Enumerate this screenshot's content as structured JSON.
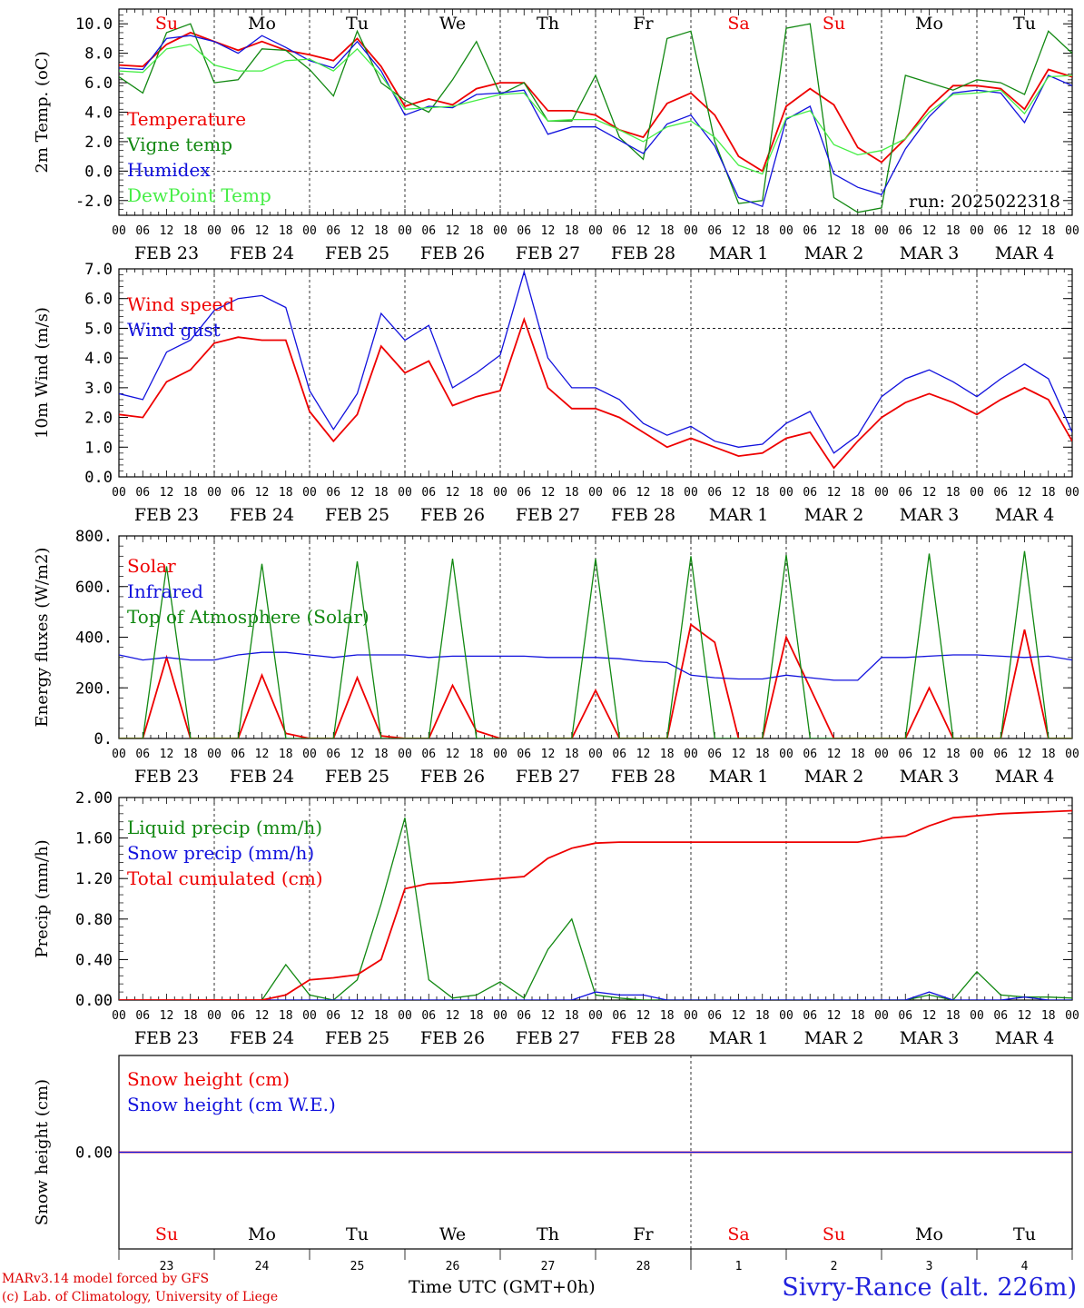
{
  "footer": {
    "credit_line1": "MARv3.14 model forced by GFS",
    "credit_line2": "(c) Lab. of Climatology, University of Liege",
    "x_axis_title": "Time UTC (GMT+0h)",
    "station": "Sivry-Rance (alt. 226m)",
    "run_label": "run: 2025022318"
  },
  "time_axis": {
    "hour_ticks": [
      "00",
      "06",
      "12",
      "18"
    ],
    "day_labels": [
      "FEB 23",
      "FEB 24",
      "FEB 25",
      "FEB 26",
      "FEB 27",
      "FEB 28",
      "MAR  1",
      "MAR  2",
      "MAR  3",
      "MAR  4"
    ],
    "weekday_labels": [
      "Su",
      "Mo",
      "Tu",
      "We",
      "Th",
      "Fr",
      "Sa",
      "Su",
      "Mo",
      "Tu"
    ],
    "weekend_flags": [
      true,
      false,
      false,
      false,
      false,
      false,
      true,
      true,
      false,
      false
    ],
    "day_numbers": [
      "23",
      "24",
      "25",
      "26",
      "27",
      "28",
      "1",
      "2",
      "3",
      "4"
    ],
    "bottom_month_label": "FEB",
    "bottom_month_label2": "MAR"
  },
  "colors": {
    "red": "#ee0000",
    "green": "#118811",
    "blue": "#1111dd",
    "lightgreen": "#44ee44",
    "weekend": "#ee0000"
  },
  "chart_data": [
    {
      "type": "line",
      "ylabel": "2m Temp. (oC)",
      "ylim": [
        -3.0,
        11.0
      ],
      "yticks": [
        "10.0",
        "8.0",
        "6.0",
        "4.0",
        "2.0",
        "0.0",
        "-2.0"
      ],
      "ytick_values": [
        10,
        8,
        6,
        4,
        2,
        0,
        -2
      ],
      "dashed_y": 0,
      "x_hours": [
        0,
        6,
        12,
        18,
        24,
        30,
        36,
        42,
        48,
        54,
        60,
        66,
        72,
        78,
        84,
        90,
        96,
        102,
        108,
        114,
        120,
        126,
        132,
        138,
        144,
        150,
        156,
        162,
        168,
        174,
        180,
        186,
        192,
        198,
        204,
        210,
        216,
        222,
        228,
        234,
        240
      ],
      "series": [
        {
          "name": "Temperature",
          "color": "red",
          "values": [
            7.2,
            7.1,
            8.6,
            9.4,
            8.8,
            8.2,
            8.8,
            8.2,
            7.9,
            7.5,
            9.0,
            7.1,
            4.4,
            4.9,
            4.5,
            5.6,
            6.0,
            6.0,
            4.1,
            4.1,
            3.8,
            2.8,
            2.3,
            4.6,
            5.3,
            3.8,
            1.0,
            0.0,
            4.4,
            5.6,
            4.5,
            1.6,
            0.6,
            2.2,
            4.3,
            5.8,
            5.8,
            5.6,
            4.2,
            6.9,
            6.4
          ]
        },
        {
          "name": "Vigne temp",
          "color": "green",
          "values": [
            6.4,
            5.3,
            9.4,
            10.0,
            6.0,
            6.2,
            8.3,
            8.2,
            6.9,
            5.1,
            9.5,
            6.0,
            4.8,
            4.0,
            6.2,
            8.8,
            5.2,
            6.0,
            3.4,
            3.4,
            6.5,
            2.3,
            0.8,
            9.0,
            9.5,
            2.0,
            -2.2,
            -2.0,
            9.7,
            10.0,
            -1.8,
            -2.8,
            -2.5,
            6.5,
            6.0,
            5.5,
            6.2,
            6.0,
            5.2,
            9.5,
            8.0
          ]
        },
        {
          "name": "Humidex",
          "color": "blue",
          "values": [
            7.0,
            6.9,
            9.0,
            9.2,
            8.8,
            8.0,
            9.2,
            8.4,
            7.5,
            7.0,
            8.8,
            6.8,
            3.8,
            4.4,
            4.3,
            5.2,
            5.3,
            5.5,
            2.5,
            3.0,
            3.0,
            2.1,
            1.2,
            3.2,
            3.8,
            1.7,
            -1.8,
            -2.4,
            3.5,
            4.4,
            -0.2,
            -1.1,
            -1.6,
            1.5,
            3.7,
            5.3,
            5.5,
            5.3,
            3.3,
            6.5,
            5.8
          ]
        },
        {
          "name": "DewPoint Temp",
          "color": "lightgreen",
          "values": [
            6.8,
            6.7,
            8.3,
            8.6,
            7.2,
            6.8,
            6.8,
            7.5,
            7.6,
            6.8,
            8.3,
            6.5,
            4.2,
            4.3,
            4.4,
            4.8,
            5.2,
            5.3,
            3.4,
            3.5,
            3.5,
            2.8,
            2.0,
            3.0,
            3.4,
            2.3,
            0.4,
            -0.2,
            3.6,
            4.1,
            1.8,
            1.1,
            1.4,
            2.2,
            4.0,
            5.2,
            5.3,
            5.5,
            3.9,
            6.4,
            6.5
          ]
        }
      ]
    },
    {
      "type": "line",
      "ylabel": "10m Wind (m/s)",
      "ylim": [
        0.0,
        7.0
      ],
      "yticks": [
        "7.0",
        "6.0",
        "5.0",
        "4.0",
        "3.0",
        "2.0",
        "1.0",
        "0.0"
      ],
      "ytick_values": [
        7,
        6,
        5,
        4,
        3,
        2,
        1,
        0
      ],
      "dashed_y": 5,
      "x_hours": [
        0,
        6,
        12,
        18,
        24,
        30,
        36,
        42,
        48,
        54,
        60,
        66,
        72,
        78,
        84,
        90,
        96,
        102,
        108,
        114,
        120,
        126,
        132,
        138,
        144,
        150,
        156,
        162,
        168,
        174,
        180,
        186,
        192,
        198,
        204,
        210,
        216,
        222,
        228,
        234,
        240
      ],
      "series": [
        {
          "name": "Wind speed",
          "color": "red",
          "values": [
            2.1,
            2.0,
            3.2,
            3.6,
            4.5,
            4.7,
            4.6,
            4.6,
            2.2,
            1.2,
            2.1,
            4.4,
            3.5,
            3.9,
            2.4,
            2.7,
            2.9,
            5.3,
            3.0,
            2.3,
            2.3,
            2.0,
            1.5,
            1.0,
            1.3,
            1.0,
            0.7,
            0.8,
            1.3,
            1.5,
            0.3,
            1.2,
            2.0,
            2.5,
            2.8,
            2.5,
            2.1,
            2.6,
            3.0,
            2.6,
            1.2
          ]
        },
        {
          "name": "Wind gust",
          "color": "blue",
          "values": [
            2.8,
            2.6,
            4.2,
            4.6,
            5.6,
            6.0,
            6.1,
            5.7,
            2.9,
            1.6,
            2.8,
            5.5,
            4.6,
            5.1,
            3.0,
            3.5,
            4.1,
            6.9,
            4.0,
            3.0,
            3.0,
            2.6,
            1.8,
            1.4,
            1.7,
            1.2,
            1.0,
            1.1,
            1.8,
            2.2,
            0.8,
            1.4,
            2.7,
            3.3,
            3.6,
            3.2,
            2.7,
            3.3,
            3.8,
            3.3,
            1.5
          ]
        }
      ]
    },
    {
      "type": "line",
      "ylabel": "Energy fluxes (W/m2)",
      "ylim": [
        0,
        800
      ],
      "yticks": [
        "800.",
        "600.",
        "400.",
        "200.",
        "0."
      ],
      "ytick_values": [
        800,
        600,
        400,
        200,
        0
      ],
      "dashed_y": null,
      "x_hours": [
        0,
        6,
        12,
        18,
        24,
        30,
        36,
        42,
        48,
        54,
        60,
        66,
        72,
        78,
        84,
        90,
        96,
        102,
        108,
        114,
        120,
        126,
        132,
        138,
        144,
        150,
        156,
        162,
        168,
        174,
        180,
        186,
        192,
        198,
        204,
        210,
        216,
        222,
        228,
        234,
        240
      ],
      "series": [
        {
          "name": "Solar",
          "color": "red",
          "values": [
            0,
            0,
            320,
            0,
            0,
            0,
            250,
            20,
            0,
            0,
            240,
            10,
            0,
            0,
            210,
            30,
            0,
            0,
            0,
            0,
            190,
            0,
            0,
            0,
            450,
            380,
            0,
            0,
            400,
            200,
            0,
            0,
            0,
            0,
            200,
            0,
            0,
            0,
            430,
            0,
            0
          ]
        },
        {
          "name": "Infrared",
          "color": "blue",
          "values": [
            330,
            310,
            320,
            310,
            310,
            330,
            340,
            340,
            330,
            320,
            330,
            330,
            330,
            320,
            325,
            325,
            325,
            325,
            320,
            320,
            320,
            315,
            305,
            300,
            250,
            240,
            235,
            235,
            250,
            240,
            230,
            230,
            320,
            320,
            325,
            330,
            330,
            325,
            320,
            325,
            310
          ]
        },
        {
          "name": "Top of Atmosphere (Solar)",
          "color": "green",
          "values": [
            0,
            0,
            680,
            0,
            0,
            0,
            690,
            0,
            0,
            0,
            700,
            0,
            0,
            0,
            710,
            0,
            0,
            0,
            0,
            0,
            710,
            0,
            0,
            0,
            720,
            0,
            0,
            0,
            725,
            0,
            0,
            0,
            0,
            0,
            730,
            0,
            0,
            0,
            740,
            0,
            0
          ]
        }
      ]
    },
    {
      "type": "line",
      "ylabel": "Precip (mm/h)",
      "ylim": [
        0.0,
        2.0
      ],
      "yticks": [
        "2.00",
        "1.60",
        "1.20",
        "0.80",
        "0.40",
        "0.00"
      ],
      "ytick_values": [
        2.0,
        1.6,
        1.2,
        0.8,
        0.4,
        0.0
      ],
      "dashed_y": null,
      "x_hours": [
        0,
        6,
        12,
        18,
        24,
        30,
        36,
        42,
        48,
        54,
        60,
        66,
        72,
        78,
        84,
        90,
        96,
        102,
        108,
        114,
        120,
        126,
        132,
        138,
        144,
        150,
        156,
        162,
        168,
        174,
        180,
        186,
        192,
        198,
        204,
        210,
        216,
        222,
        228,
        234,
        240
      ],
      "series": [
        {
          "name": "Liquid precip (mm/h)",
          "color": "green",
          "values": [
            0,
            0,
            0,
            0,
            0,
            0,
            0,
            0.35,
            0.05,
            0,
            0.2,
            0.95,
            1.8,
            0.2,
            0.02,
            0.05,
            0.18,
            0.02,
            0.5,
            0.8,
            0.05,
            0.02,
            0,
            0,
            0,
            0,
            0,
            0,
            0,
            0,
            0,
            0,
            0,
            0,
            0.05,
            0,
            0.28,
            0.05,
            0.03,
            0.03,
            0.02
          ]
        },
        {
          "name": "Snow precip (mm/h)",
          "color": "blue",
          "values": [
            0,
            0,
            0,
            0,
            0,
            0,
            0,
            0,
            0,
            0,
            0,
            0,
            0,
            0,
            0,
            0,
            0,
            0,
            0,
            0,
            0.08,
            0.05,
            0.05,
            0,
            0,
            0,
            0,
            0,
            0,
            0,
            0,
            0,
            0,
            0,
            0.08,
            0,
            0,
            0,
            0.03,
            0,
            0
          ]
        },
        {
          "name": "Total cumulated (cm)",
          "color": "red",
          "values": [
            0,
            0,
            0,
            0,
            0,
            0,
            0,
            0.05,
            0.2,
            0.22,
            0.25,
            0.4,
            1.1,
            1.15,
            1.16,
            1.18,
            1.2,
            1.22,
            1.4,
            1.5,
            1.55,
            1.56,
            1.56,
            1.56,
            1.56,
            1.56,
            1.56,
            1.56,
            1.56,
            1.56,
            1.56,
            1.56,
            1.6,
            1.62,
            1.72,
            1.8,
            1.82,
            1.84,
            1.85,
            1.86,
            1.87
          ]
        }
      ]
    },
    {
      "type": "line",
      "ylabel": "Snow height (cm)",
      "ylim": [
        -1,
        1
      ],
      "yticks": [
        "0.00"
      ],
      "ytick_values": [
        0
      ],
      "dashed_y": null,
      "x_hours": [
        0,
        240
      ],
      "series": [
        {
          "name": "Snow height (cm)",
          "color": "red",
          "values": [
            0,
            0
          ]
        },
        {
          "name": "Snow height (cm W.E.)",
          "color": "blue",
          "values": [
            0,
            0
          ]
        }
      ]
    }
  ]
}
